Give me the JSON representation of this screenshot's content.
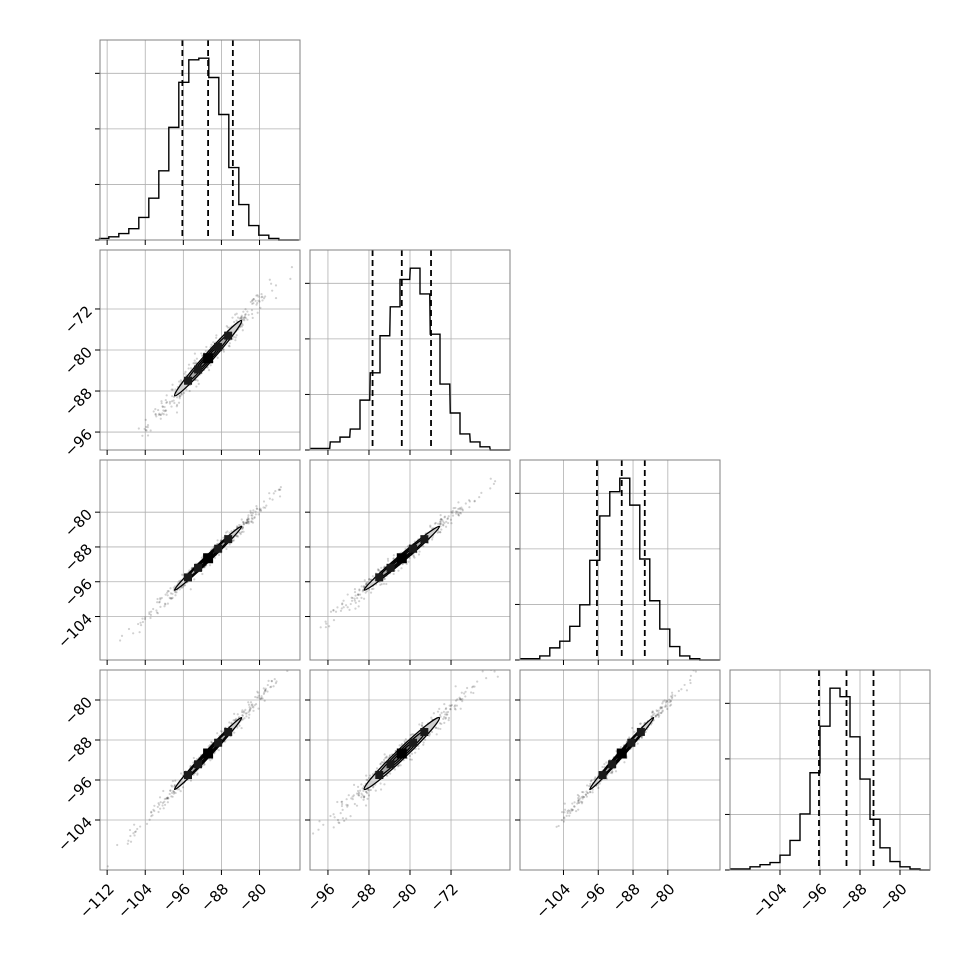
{
  "chart_data": {
    "type": "corner",
    "title": "",
    "parameters": [
      "",
      "",
      "",
      ""
    ],
    "x_ticks": [
      [
        -112,
        -104,
        -96,
        -88,
        -80
      ],
      [
        -96,
        -88,
        -80,
        -72
      ],
      [
        -104,
        -96,
        -88,
        -80
      ],
      [
        -104,
        -96,
        -88,
        -80
      ]
    ],
    "y_ticks": [
      [],
      [
        -72,
        -80,
        -88,
        -96
      ],
      [
        -80,
        -88,
        -96,
        -104
      ],
      [
        -80,
        -88,
        -96,
        -104
      ]
    ],
    "ranges": [
      [
        -113.5,
        -71.5
      ],
      [
        -99.5,
        -60.5
      ],
      [
        -114,
        -68
      ],
      [
        -114,
        -74
      ]
    ],
    "histograms": [
      {
        "x": [
          -112.7,
          -110.6,
          -108.5,
          -106.4,
          -104.3,
          -102.2,
          -100.1,
          -98.0,
          -95.9,
          -93.8,
          -91.7,
          -89.6,
          -87.5,
          -85.4,
          -83.3,
          -81.2,
          -79.1,
          -77.0,
          -74.9,
          -72.8
        ],
        "counts": [
          1,
          2,
          4,
          7,
          14,
          26,
          43,
          70,
          98,
          112,
          113,
          101,
          78,
          45,
          22,
          9,
          3,
          1,
          0,
          0
        ],
        "quantiles": [
          -96.2,
          -90.8,
          -85.6
        ]
      },
      {
        "x": [
          -98.5,
          -96.6,
          -94.6,
          -92.7,
          -90.7,
          -88.8,
          -86.8,
          -84.9,
          -82.9,
          -81.0,
          -79.0,
          -77.1,
          -75.1,
          -73.2,
          -71.2,
          -69.3,
          -67.3,
          -65.4,
          -63.4,
          -61.5
        ],
        "counts": [
          1,
          1,
          5,
          8,
          13,
          31,
          48,
          71,
          89,
          106,
          113,
          97,
          72,
          41,
          23,
          10,
          5,
          2,
          0,
          0
        ],
        "quantiles": [
          -87.3,
          -81.6,
          -75.9
        ]
      },
      {
        "x": [
          -112.9,
          -110.6,
          -108.3,
          -106.0,
          -103.7,
          -101.4,
          -99.1,
          -96.8,
          -94.5,
          -92.2,
          -89.9,
          -87.6,
          -85.3,
          -83.0,
          -80.7,
          -78.4,
          -76.1,
          -73.8,
          -71.5,
          -69.2
        ],
        "counts": [
          1,
          1,
          3,
          9,
          14,
          25,
          41,
          74,
          107,
          125,
          135,
          115,
          75,
          44,
          23,
          10,
          3,
          1,
          0,
          0
        ],
        "quantiles": [
          -96.3,
          -90.6,
          -85.3
        ]
      },
      {
        "x": [
          -113.0,
          -111.0,
          -109.0,
          -107.0,
          -105.0,
          -103.0,
          -101.0,
          -99.0,
          -97.0,
          -95.0,
          -93.0,
          -91.0,
          -89.0,
          -87.0,
          -85.0,
          -83.0,
          -81.0,
          -79.0,
          -77.0,
          -75.0
        ],
        "counts": [
          1,
          1,
          3,
          5,
          7,
          14,
          28,
          53,
          92,
          136,
          172,
          164,
          126,
          86,
          48,
          21,
          8,
          3,
          1,
          0
        ],
        "quantiles": [
          -96.2,
          -90.7,
          -85.3
        ]
      }
    ],
    "pairs": [
      {
        "row": 1,
        "col": 0,
        "center": [
          -90.8,
          -81.6
        ],
        "rho": 0.985,
        "sigma": [
          4.7,
          4.9
        ]
      },
      {
        "row": 2,
        "col": 0,
        "center": [
          -90.8,
          -90.6
        ],
        "rho": 0.992,
        "sigma": [
          4.7,
          4.9
        ]
      },
      {
        "row": 2,
        "col": 1,
        "center": [
          -81.6,
          -90.6
        ],
        "rho": 0.99,
        "sigma": [
          4.9,
          4.9
        ]
      },
      {
        "row": 3,
        "col": 0,
        "center": [
          -90.8,
          -90.7
        ],
        "rho": 0.992,
        "sigma": [
          4.7,
          4.8
        ]
      },
      {
        "row": 3,
        "col": 1,
        "center": [
          -81.6,
          -90.7
        ],
        "rho": 0.982,
        "sigma": [
          4.9,
          4.8
        ]
      },
      {
        "row": 3,
        "col": 2,
        "center": [
          -90.6,
          -90.7
        ],
        "rho": 0.993,
        "sigma": [
          4.9,
          4.8
        ]
      }
    ],
    "contour_levels": [
      0.5,
      1.0,
      1.5
    ],
    "grid": true,
    "colors": {
      "line": "#000000",
      "grid": "#b0b0b0",
      "frame": "#808080",
      "density": "#000000"
    }
  }
}
